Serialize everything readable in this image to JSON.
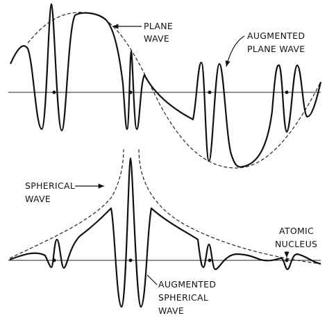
{
  "labels": [
    {
      "lines": [
        "PLANE",
        "WAVE"
      ]
    },
    {
      "lines": [
        "AUGMENTED",
        "PLANE WAVE"
      ]
    },
    {
      "lines": [
        "SPHERICAL",
        "WAVE"
      ]
    },
    {
      "lines": [
        "ATOMIC",
        "NUCLEUS"
      ]
    },
    {
      "lines": [
        "AUGMENTED",
        "SPHERICAL",
        "WAVE"
      ]
    }
  ]
}
